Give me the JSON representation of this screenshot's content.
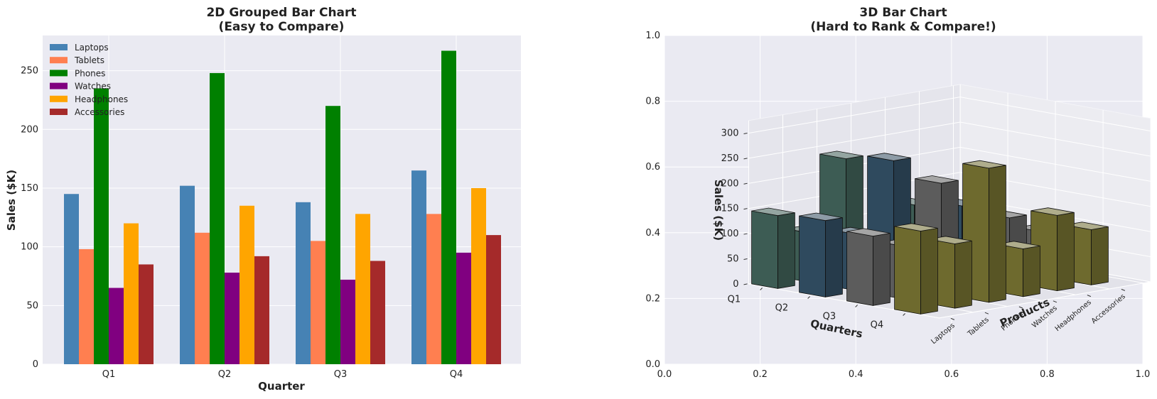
{
  "chart_data": [
    {
      "type": "bar",
      "title_line1": "2D Grouped Bar Chart",
      "title_line2": "(Easy to Compare)",
      "xlabel": "Quarter",
      "ylabel": "Sales ($K)",
      "categories": [
        "Q1",
        "Q2",
        "Q3",
        "Q4"
      ],
      "ylim": [
        0,
        280
      ],
      "yticks": [
        0,
        50,
        100,
        150,
        200,
        250
      ],
      "grid": true,
      "legend_position": "top-left",
      "series": [
        {
          "name": "Laptops",
          "color": "#4682b4",
          "values": [
            145,
            152,
            138,
            165
          ]
        },
        {
          "name": "Tablets",
          "color": "#ff7f50",
          "values": [
            98,
            112,
            105,
            128
          ]
        },
        {
          "name": "Phones",
          "color": "#008000",
          "values": [
            235,
            248,
            220,
            267
          ]
        },
        {
          "name": "Watches",
          "color": "#800080",
          "values": [
            65,
            78,
            72,
            95
          ]
        },
        {
          "name": "Headphones",
          "color": "#ffa500",
          "values": [
            120,
            135,
            128,
            150
          ]
        },
        {
          "name": "Accessories",
          "color": "#a52a2a",
          "values": [
            85,
            92,
            88,
            110
          ]
        }
      ]
    },
    {
      "type": "bar",
      "title_line1": "3D Bar Chart",
      "title_line2": "(Hard to Rank & Compare!)",
      "xlabel": "Quarters",
      "ylabel": "Products",
      "zlabel": "Sales ($K)",
      "categories": [
        "Q1",
        "Q2",
        "Q3",
        "Q4"
      ],
      "products": [
        "Laptops",
        "Tablets",
        "Phones",
        "Watches",
        "Headphones",
        "Accessories"
      ],
      "zticks": [
        0,
        50,
        100,
        150,
        200,
        250,
        300
      ],
      "frame_ticks": [
        "0.0",
        "0.2",
        "0.4",
        "0.6",
        "0.8",
        "1.0"
      ],
      "quarter_colors": [
        "#3d5c54",
        "#2f4a5e",
        "#5c5c5c",
        "#6e6a2e"
      ],
      "values": [
        [
          145,
          152,
          138,
          165
        ],
        [
          98,
          112,
          105,
          128
        ],
        [
          235,
          248,
          220,
          267
        ],
        [
          65,
          78,
          72,
          95
        ],
        [
          120,
          135,
          128,
          150
        ],
        [
          85,
          92,
          88,
          110
        ]
      ]
    }
  ]
}
